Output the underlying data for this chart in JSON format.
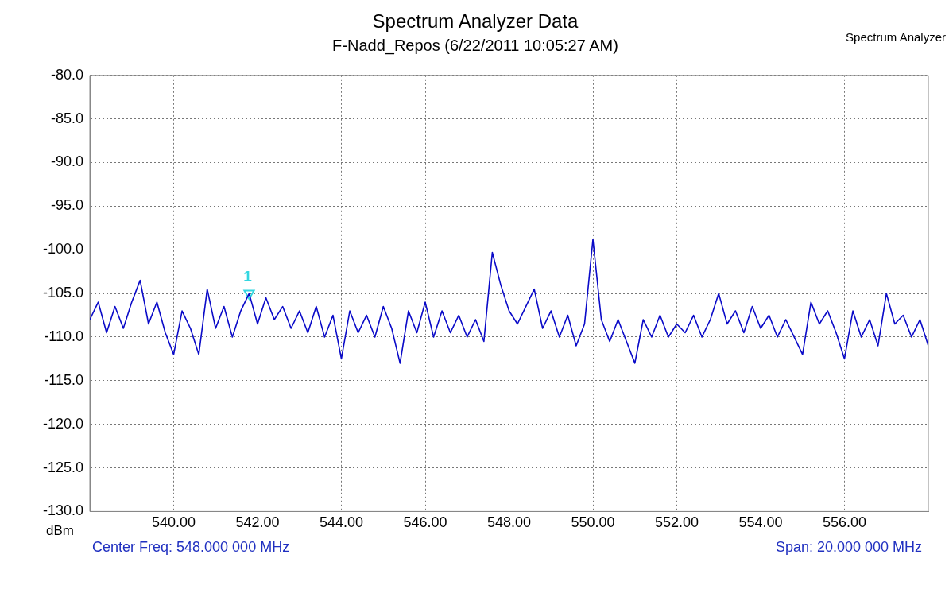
{
  "chart_data": {
    "type": "line",
    "title": "Spectrum Analyzer Data",
    "subtitle": "F-Nadd_Repos (6/22/2011 10:05:27 AM)",
    "ylabel": "dBm",
    "annotations": [
      "Spectrum Analyzer",
      "Center Freq: 548.000 000 MHz",
      "Span: 20.000 000 MHz"
    ],
    "xlim": [
      538,
      558
    ],
    "xticks": [
      {
        "value": 540,
        "label": "540.00"
      },
      {
        "value": 542,
        "label": "542.00"
      },
      {
        "value": 544,
        "label": "544.00"
      },
      {
        "value": 546,
        "label": "546.00"
      },
      {
        "value": 548,
        "label": "548.00"
      },
      {
        "value": 550,
        "label": "550.00"
      },
      {
        "value": 552,
        "label": "552.00"
      },
      {
        "value": 554,
        "label": "554.00"
      },
      {
        "value": 556,
        "label": "556.00"
      }
    ],
    "ylim": [
      -130,
      -80
    ],
    "yticks": [
      {
        "value": -130,
        "label": "-130.0"
      },
      {
        "value": -125,
        "label": "-125.0"
      },
      {
        "value": -120,
        "label": "-120.0"
      },
      {
        "value": -115,
        "label": "-115.0"
      },
      {
        "value": -110,
        "label": "-110.0"
      },
      {
        "value": -105,
        "label": "-105.0"
      },
      {
        "value": -100,
        "label": "-100.0"
      },
      {
        "value": -95,
        "label": "-95.0"
      },
      {
        "value": -90,
        "label": "-90.0"
      },
      {
        "value": -85,
        "label": "-85.0"
      },
      {
        "value": -80,
        "label": "-80.0"
      }
    ],
    "grid": true,
    "legend": false,
    "marker": "none",
    "line_style": "solid",
    "x": [
      538.0,
      538.2,
      538.4,
      538.6,
      538.8,
      539.0,
      539.2,
      539.4,
      539.6,
      539.8,
      540.0,
      540.2,
      540.4,
      540.6,
      540.8,
      541.0,
      541.2,
      541.4,
      541.6,
      541.8,
      542.0,
      542.2,
      542.4,
      542.6,
      542.8,
      543.0,
      543.2,
      543.4,
      543.6,
      543.8,
      544.0,
      544.2,
      544.4,
      544.6,
      544.8,
      545.0,
      545.2,
      545.4,
      545.6,
      545.8,
      546.0,
      546.2,
      546.4,
      546.6,
      546.8,
      547.0,
      547.2,
      547.4,
      547.6,
      547.8,
      548.0,
      548.2,
      548.4,
      548.6,
      548.8,
      549.0,
      549.2,
      549.4,
      549.6,
      549.8,
      550.0,
      550.2,
      550.4,
      550.6,
      550.8,
      551.0,
      551.2,
      551.4,
      551.6,
      551.8,
      552.0,
      552.2,
      552.4,
      552.6,
      552.8,
      553.0,
      553.2,
      553.4,
      553.6,
      553.8,
      554.0,
      554.2,
      554.4,
      554.6,
      554.8,
      555.0,
      555.2,
      555.4,
      555.6,
      555.8,
      556.0,
      556.2,
      556.4,
      556.6,
      556.8,
      557.0,
      557.2,
      557.4,
      557.6,
      557.8,
      558.0
    ],
    "series": [
      {
        "color": "#0a0ac8",
        "values": [
          -108,
          -106,
          -109.5,
          -106.5,
          -109,
          -106,
          -103.5,
          -108.5,
          -106,
          -109.5,
          -112,
          -107,
          -109,
          -112,
          -104.5,
          -109,
          -106.5,
          -110,
          -107,
          -105,
          -108.5,
          -105.5,
          -108,
          -106.5,
          -109,
          -107,
          -109.5,
          -106.5,
          -110,
          -107.5,
          -112.5,
          -107,
          -109.5,
          -107.5,
          -110,
          -106.5,
          -109,
          -113,
          -107,
          -109.5,
          -106,
          -110,
          -107,
          -109.5,
          -107.5,
          -110,
          -108,
          -110.5,
          -100.3,
          -104,
          -107,
          -108.5,
          -106.5,
          -104.5,
          -109,
          -107,
          -110,
          -107.5,
          -111,
          -108.5,
          -98.8,
          -108,
          -110.5,
          -108,
          -110.5,
          -113,
          -108,
          -110,
          -107.5,
          -110,
          -108.5,
          -109.5,
          -107.5,
          -110,
          -108,
          -105,
          -108.5,
          -107,
          -109.5,
          -106.5,
          -109,
          -107.5,
          -110,
          -108,
          -110,
          -112,
          -106,
          -108.5,
          -107,
          -109.5,
          -112.5,
          -107,
          -110,
          -108,
          -111,
          -105,
          -108.5,
          -107.5,
          -110,
          -108,
          -111
        ]
      },
      {
        "type": "scatter",
        "name": "1",
        "color": "#33d6e0",
        "marker": "triangle",
        "x": [
          541.8
        ],
        "values": [
          -105
        ]
      }
    ]
  }
}
